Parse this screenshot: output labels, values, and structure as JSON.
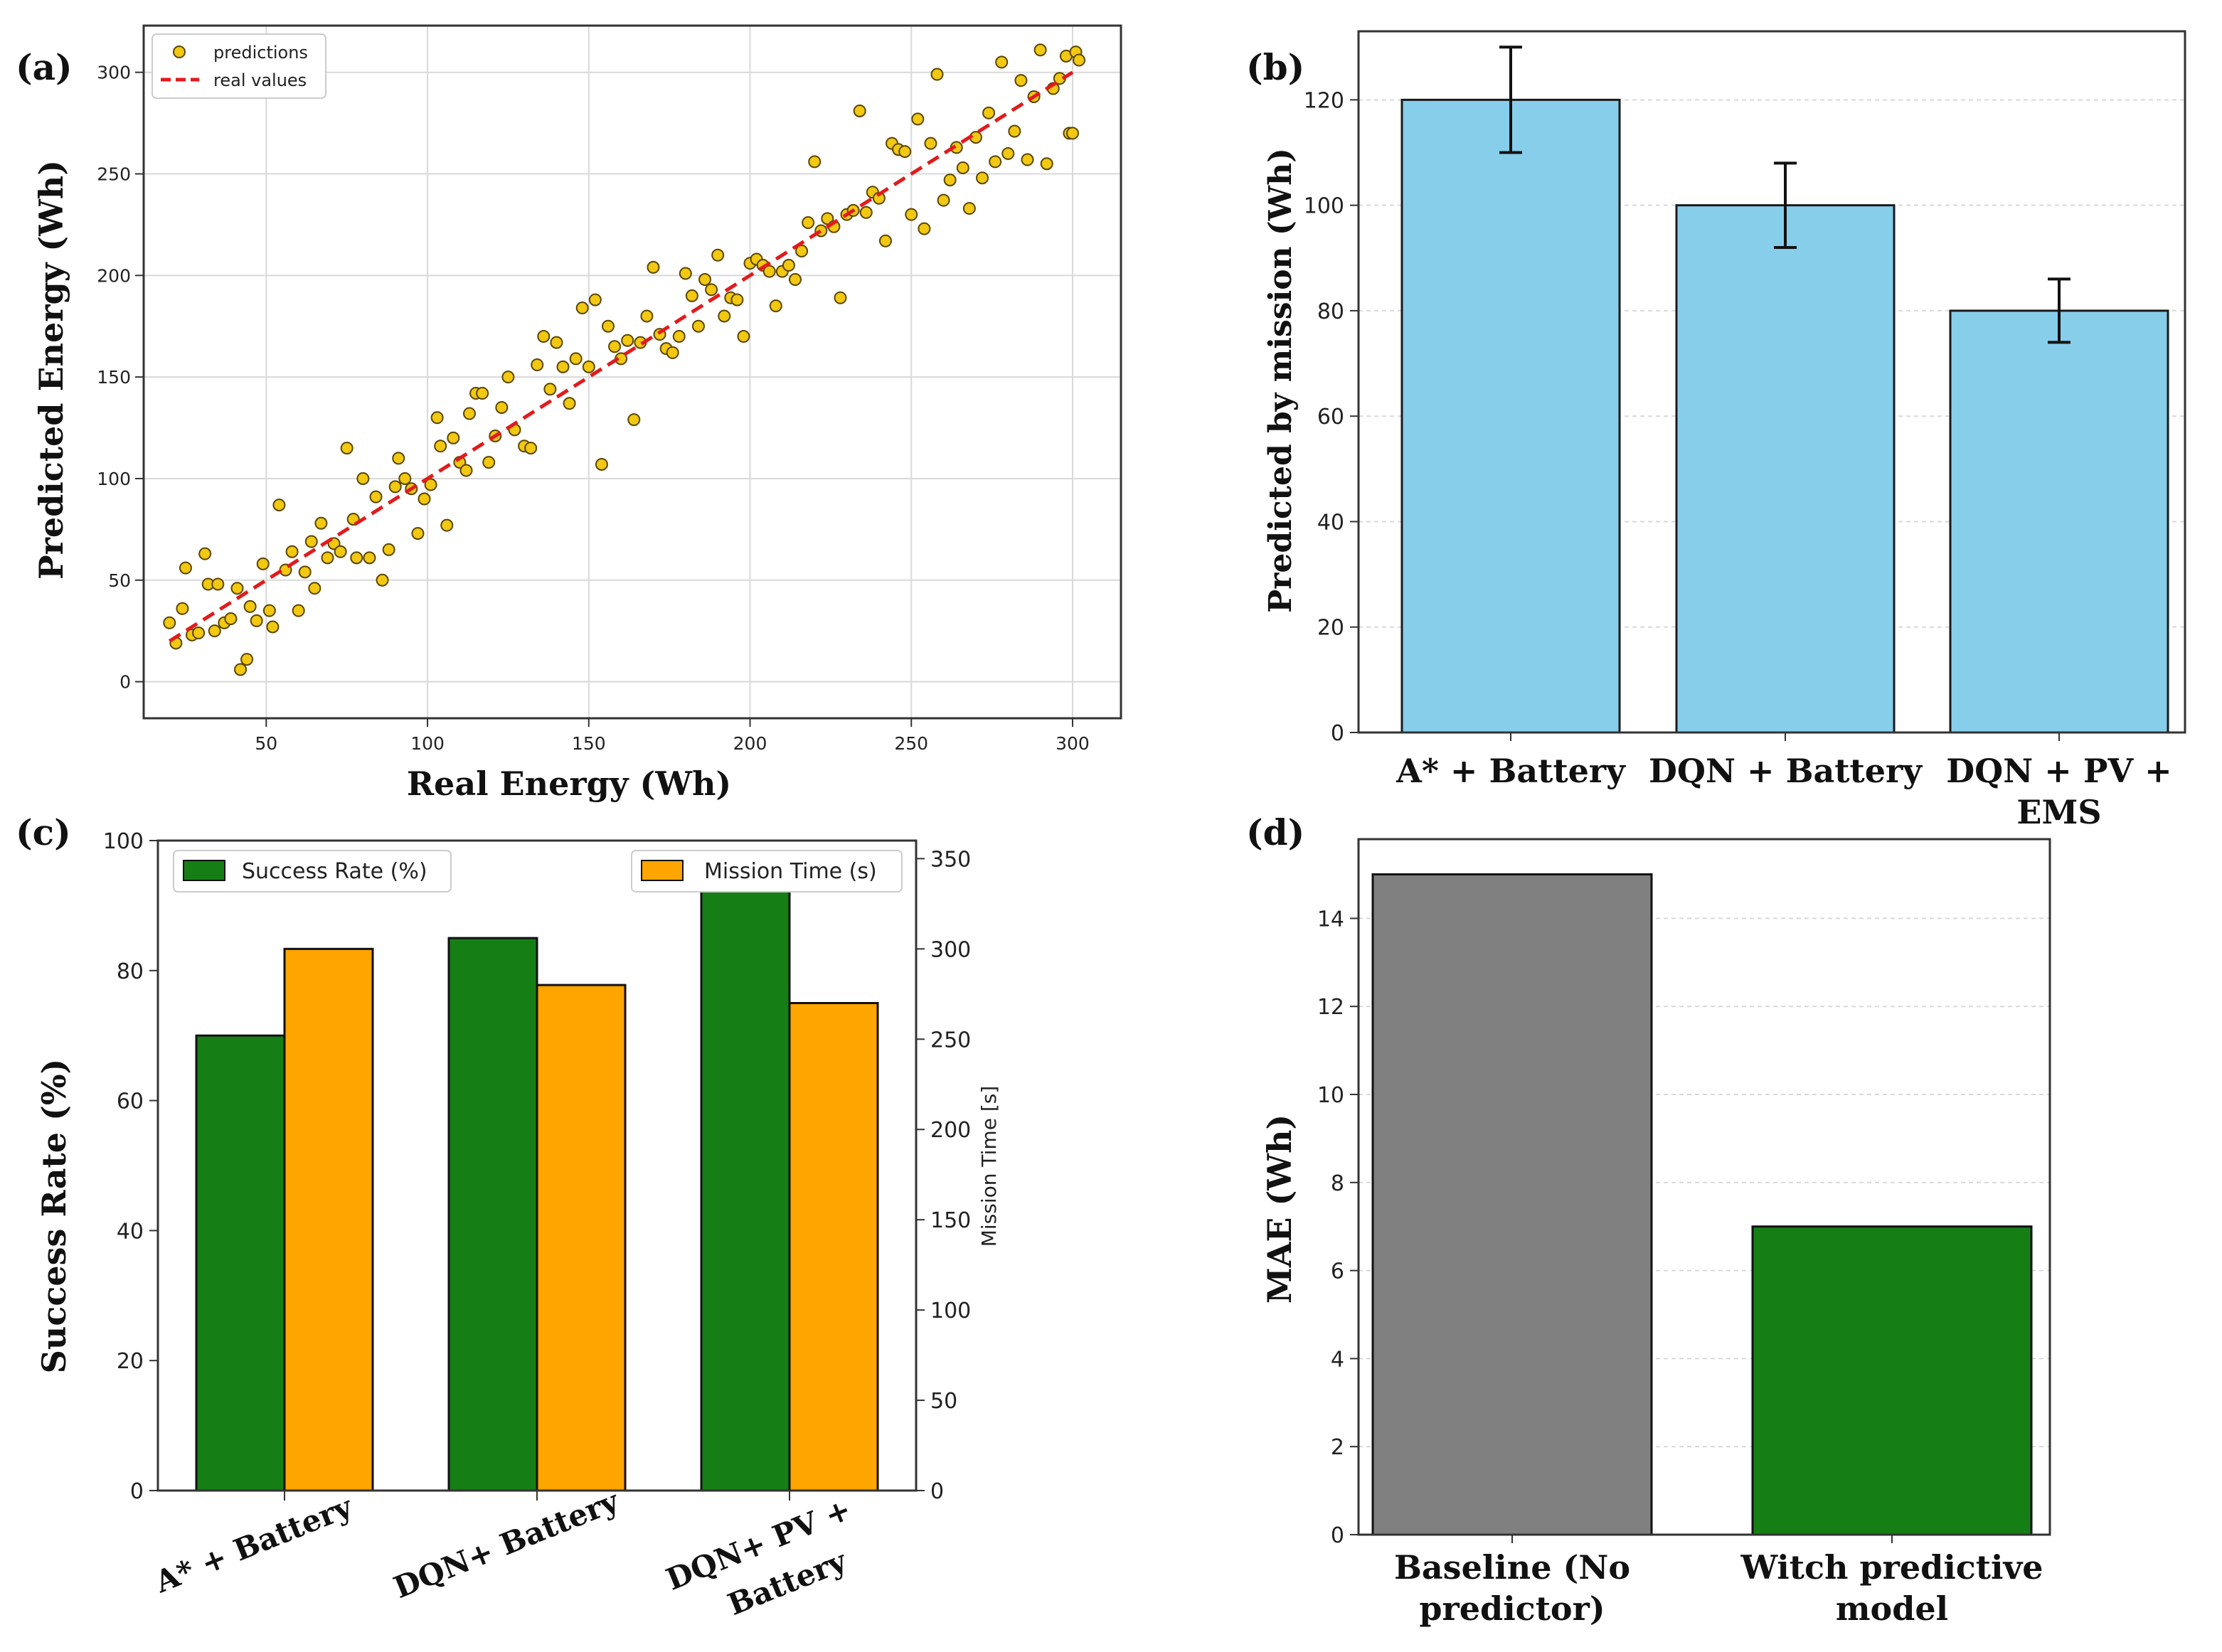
{
  "colors": {
    "scatter_fill": "#f2c811",
    "scatter_edge": "#5a4600",
    "ideal_line": "#e31a1c",
    "bar_blue": "#87ceeb",
    "green": "#157f15",
    "orange": "#ffa500",
    "gray": "#808080",
    "grid": "#d9d9d9"
  },
  "chart_data": [
    {
      "panel": "(a)",
      "type": "scatter",
      "xlabel": "Real Energy (Wh)",
      "ylabel": "Predicted Energy (Wh)",
      "xlim": [
        12,
        315
      ],
      "ylim": [
        -18,
        323
      ],
      "xticks": [
        50,
        100,
        150,
        200,
        250,
        300
      ],
      "yticks": [
        0,
        50,
        100,
        150,
        200,
        250,
        300
      ],
      "grid": true,
      "legend_position": "top-left",
      "legend": [
        "predictions",
        "real values"
      ],
      "ideal_line": {
        "name": "real values",
        "from": [
          20,
          20
        ],
        "to": [
          300,
          300
        ]
      },
      "points": [
        [
          20,
          29
        ],
        [
          22,
          19
        ],
        [
          24,
          36
        ],
        [
          25,
          56
        ],
        [
          27,
          23
        ],
        [
          29,
          24
        ],
        [
          31,
          63
        ],
        [
          32,
          48
        ],
        [
          34,
          25
        ],
        [
          35,
          48
        ],
        [
          37,
          29
        ],
        [
          39,
          31
        ],
        [
          41,
          46
        ],
        [
          42,
          6
        ],
        [
          44,
          11
        ],
        [
          45,
          37
        ],
        [
          47,
          30
        ],
        [
          49,
          58
        ],
        [
          51,
          35
        ],
        [
          52,
          27
        ],
        [
          54,
          87
        ],
        [
          56,
          55
        ],
        [
          58,
          64
        ],
        [
          60,
          35
        ],
        [
          62,
          54
        ],
        [
          64,
          69
        ],
        [
          65,
          46
        ],
        [
          67,
          78
        ],
        [
          69,
          61
        ],
        [
          71,
          68
        ],
        [
          73,
          64
        ],
        [
          75,
          115
        ],
        [
          77,
          80
        ],
        [
          78,
          61
        ],
        [
          80,
          100
        ],
        [
          82,
          61
        ],
        [
          84,
          91
        ],
        [
          86,
          50
        ],
        [
          88,
          65
        ],
        [
          90,
          96
        ],
        [
          91,
          110
        ],
        [
          93,
          100
        ],
        [
          95,
          95
        ],
        [
          97,
          73
        ],
        [
          99,
          90
        ],
        [
          101,
          97
        ],
        [
          103,
          130
        ],
        [
          104,
          116
        ],
        [
          106,
          77
        ],
        [
          108,
          120
        ],
        [
          110,
          108
        ],
        [
          112,
          104
        ],
        [
          113,
          132
        ],
        [
          115,
          142
        ],
        [
          117,
          142
        ],
        [
          119,
          108
        ],
        [
          121,
          121
        ],
        [
          123,
          135
        ],
        [
          125,
          150
        ],
        [
          127,
          124
        ],
        [
          130,
          116
        ],
        [
          132,
          115
        ],
        [
          134,
          156
        ],
        [
          136,
          170
        ],
        [
          138,
          144
        ],
        [
          140,
          167
        ],
        [
          142,
          155
        ],
        [
          144,
          137
        ],
        [
          146,
          159
        ],
        [
          148,
          184
        ],
        [
          150,
          155
        ],
        [
          152,
          188
        ],
        [
          154,
          107
        ],
        [
          156,
          175
        ],
        [
          158,
          165
        ],
        [
          160,
          159
        ],
        [
          162,
          168
        ],
        [
          164,
          129
        ],
        [
          166,
          167
        ],
        [
          168,
          180
        ],
        [
          170,
          204
        ],
        [
          172,
          171
        ],
        [
          174,
          164
        ],
        [
          176,
          162
        ],
        [
          178,
          170
        ],
        [
          180,
          201
        ],
        [
          182,
          190
        ],
        [
          184,
          175
        ],
        [
          186,
          198
        ],
        [
          188,
          193
        ],
        [
          190,
          210
        ],
        [
          192,
          180
        ],
        [
          194,
          189
        ],
        [
          196,
          188
        ],
        [
          198,
          170
        ],
        [
          200,
          206
        ],
        [
          202,
          208
        ],
        [
          204,
          205
        ],
        [
          206,
          202
        ],
        [
          208,
          185
        ],
        [
          210,
          202
        ],
        [
          212,
          205
        ],
        [
          214,
          198
        ],
        [
          216,
          212
        ],
        [
          218,
          226
        ],
        [
          220,
          256
        ],
        [
          222,
          222
        ],
        [
          224,
          228
        ],
        [
          226,
          224
        ],
        [
          228,
          189
        ],
        [
          230,
          230
        ],
        [
          232,
          232
        ],
        [
          234,
          281
        ],
        [
          236,
          231
        ],
        [
          238,
          241
        ],
        [
          240,
          238
        ],
        [
          242,
          217
        ],
        [
          244,
          265
        ],
        [
          246,
          262
        ],
        [
          248,
          261
        ],
        [
          250,
          230
        ],
        [
          252,
          277
        ],
        [
          254,
          223
        ],
        [
          256,
          265
        ],
        [
          258,
          299
        ],
        [
          260,
          237
        ],
        [
          262,
          247
        ],
        [
          264,
          263
        ],
        [
          266,
          253
        ],
        [
          268,
          233
        ],
        [
          270,
          268
        ],
        [
          272,
          248
        ],
        [
          274,
          280
        ],
        [
          276,
          256
        ],
        [
          278,
          305
        ],
        [
          280,
          260
        ],
        [
          282,
          271
        ],
        [
          284,
          296
        ],
        [
          286,
          257
        ],
        [
          288,
          288
        ],
        [
          290,
          311
        ],
        [
          292,
          255
        ],
        [
          294,
          292
        ],
        [
          296,
          297
        ],
        [
          298,
          308
        ],
        [
          299,
          270
        ],
        [
          300,
          270
        ],
        [
          301,
          310
        ],
        [
          302,
          306
        ]
      ]
    },
    {
      "panel": "(b)",
      "type": "bar",
      "categories": [
        "A* + Battery",
        "DQN + Battery",
        "DQN + PV + EMS"
      ],
      "category_lines": [
        [
          "A* + Battery"
        ],
        [
          "DQN + Battery"
        ],
        [
          "DQN + PV +",
          "EMS"
        ]
      ],
      "values": [
        120,
        100,
        80
      ],
      "errors": [
        10,
        8,
        6
      ],
      "ylabel": "Predicted by mission (Wh)",
      "xlabel": "",
      "ylim": [
        0,
        133
      ],
      "yticks": [
        0,
        20,
        40,
        60,
        80,
        100,
        120
      ],
      "grid": true
    },
    {
      "panel": "(c)",
      "type": "bar",
      "categories": [
        "A* + Battery",
        "DQN+ Battery",
        "DQN+ PV + Battery"
      ],
      "category_lines": [
        [
          "A* + Battery"
        ],
        [
          "DQN+ Battery"
        ],
        [
          "DQN+ PV +",
          "Battery"
        ]
      ],
      "series": [
        {
          "name": "Success Rate (%)",
          "axis": "left",
          "values": [
            70,
            85,
            95
          ]
        },
        {
          "name": "Mission Time (s)",
          "axis": "right",
          "values": [
            300,
            280,
            270
          ]
        }
      ],
      "ylabel": "Success Rate (%)",
      "y2label": "Mission Time [s]",
      "ylim": [
        0,
        100
      ],
      "y2lim": [
        0,
        360
      ],
      "yticks": [
        0,
        20,
        40,
        60,
        80,
        100
      ],
      "y2ticks": [
        0,
        50,
        100,
        150,
        200,
        250,
        300,
        350
      ],
      "grid": false,
      "legend_left": "top-left",
      "legend_right": "top-right"
    },
    {
      "panel": "(d)",
      "type": "bar",
      "categories": [
        "Baseline (No predictor)",
        "Witch predictive model"
      ],
      "category_lines": [
        [
          "Baseline (No",
          "predictor)"
        ],
        [
          "Witch predictive",
          "model"
        ]
      ],
      "values": [
        15,
        7
      ],
      "ylabel": "MAE (Wh)",
      "xlabel": "",
      "ylim": [
        0,
        15.8
      ],
      "yticks": [
        0,
        2,
        4,
        6,
        8,
        10,
        12,
        14
      ],
      "grid": true
    }
  ]
}
